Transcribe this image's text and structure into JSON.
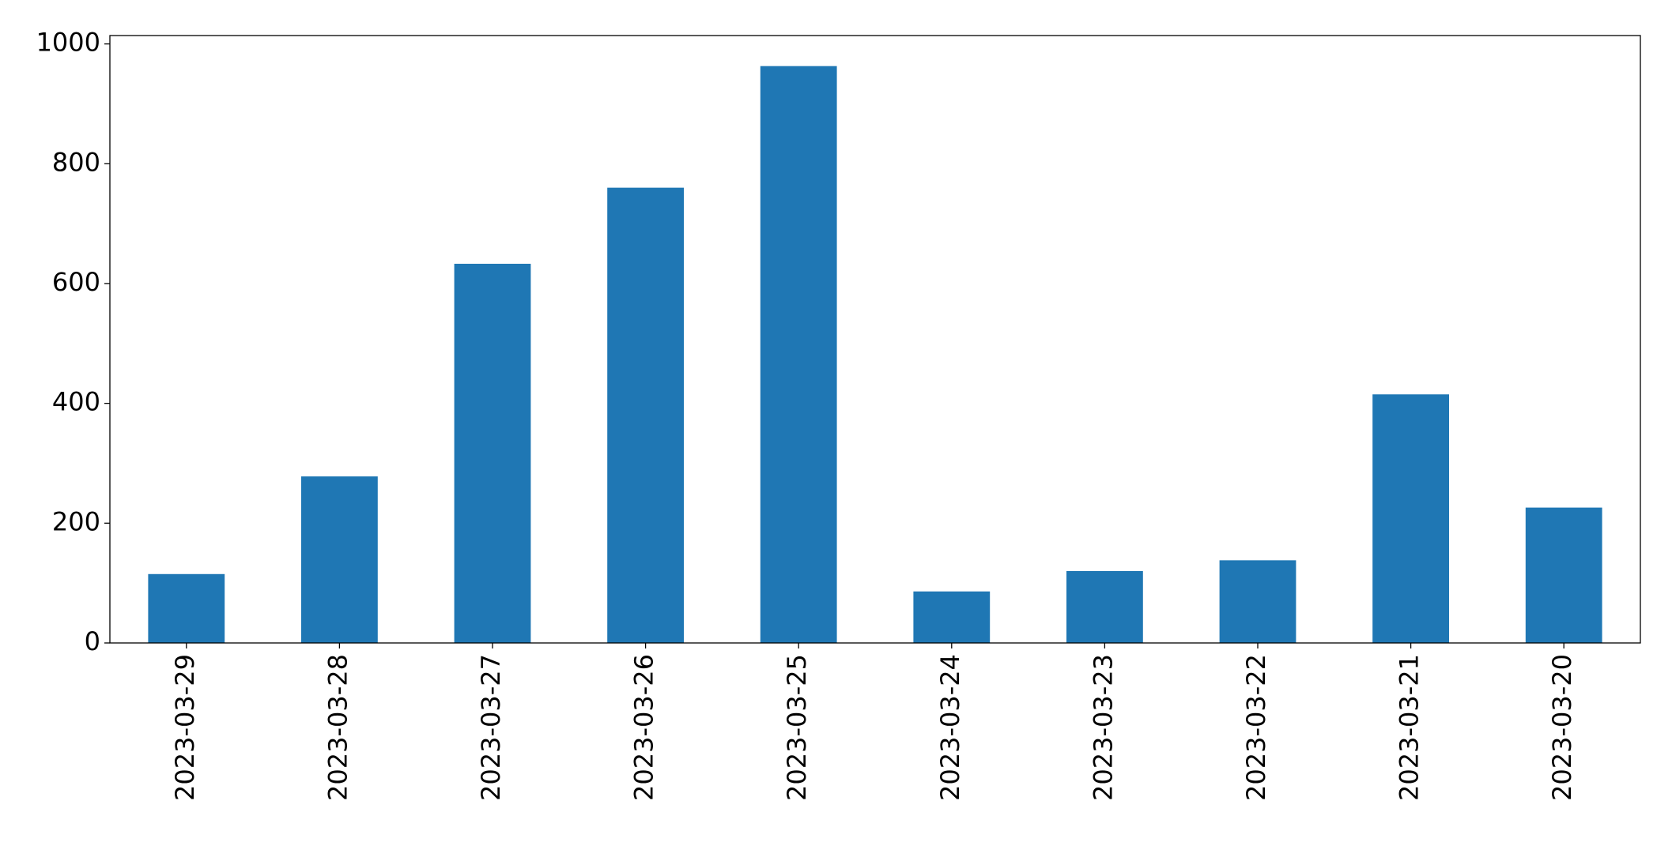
{
  "chart_data": {
    "type": "bar",
    "categories": [
      "2023-03-29",
      "2023-03-28",
      "2023-03-27",
      "2023-03-26",
      "2023-03-25",
      "2023-03-24",
      "2023-03-23",
      "2023-03-22",
      "2023-03-21",
      "2023-03-20"
    ],
    "values": [
      115,
      278,
      633,
      760,
      963,
      86,
      120,
      138,
      415,
      226
    ],
    "color": "#1f77b4",
    "ylim": [
      0,
      1014
    ],
    "yticks": [
      0,
      200,
      400,
      600,
      800,
      1000
    ],
    "grid": false
  }
}
